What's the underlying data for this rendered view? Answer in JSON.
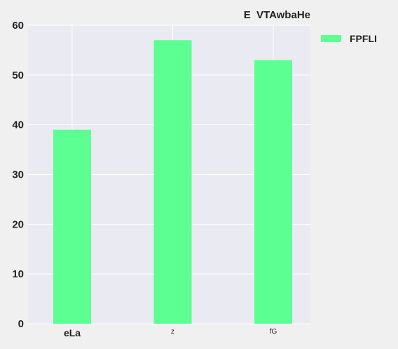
{
  "chart_data": {
    "type": "bar",
    "title": "E  VTAwbaHe",
    "xlabel": "",
    "ylabel": "",
    "categories": [
      "eLa",
      "z",
      "fG"
    ],
    "series": [
      {
        "name": "FPFLI",
        "values": [
          39,
          57,
          53
        ],
        "color": "#5cff92"
      }
    ],
    "ylim": [
      0,
      60
    ],
    "yticks": [
      0,
      10,
      20,
      30,
      40,
      50,
      60
    ],
    "grid": true,
    "legend_position": "outside-top-right",
    "background_color": "#eaeaf2",
    "figure_color": "#f0f0f0",
    "grid_color": "#ffffff"
  }
}
